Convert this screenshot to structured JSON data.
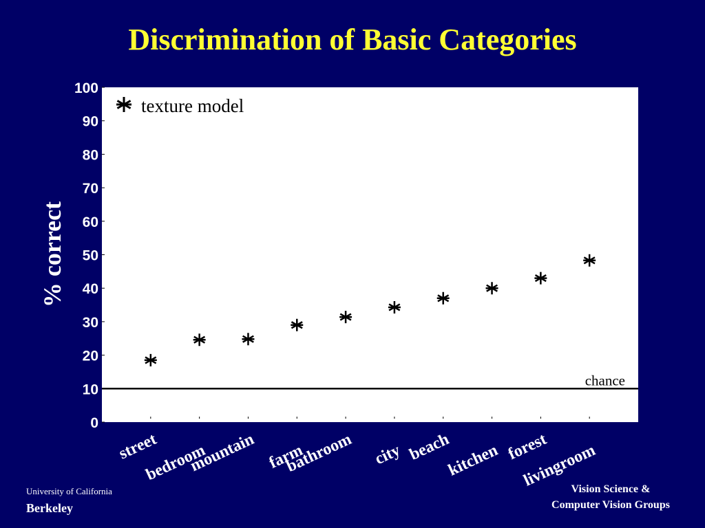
{
  "chart_data": {
    "type": "scatter",
    "title": "Discrimination of Basic Categories",
    "y_label": "% correct",
    "categories": [
      "street",
      "bedroom",
      "mountain",
      "farm",
      "bathroom",
      "city",
      "beach",
      "kitchen",
      "forest",
      "livingroom"
    ],
    "series": [
      {
        "name": "texture model",
        "color": "#000000",
        "marker": "asterisk",
        "values": [
          18.5,
          24.6,
          24.8,
          29,
          31.4,
          34.3,
          37,
          40,
          43,
          48.3
        ]
      }
    ],
    "ylim": [
      0,
      100
    ],
    "yticks": [
      0,
      10,
      20,
      30,
      40,
      50,
      60,
      70,
      80,
      90,
      100
    ],
    "reference_line": {
      "value": 10,
      "label": "chance"
    },
    "legend": "upper left",
    "grid": false
  },
  "footer": {
    "left": [
      "University of California",
      "Berkeley"
    ],
    "right": [
      "Vision Science &",
      "Computer Vision Groups"
    ]
  }
}
